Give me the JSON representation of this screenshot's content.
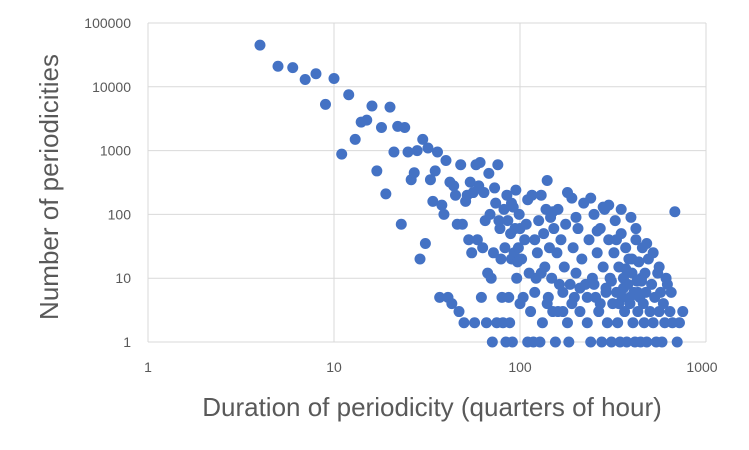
{
  "chart_data": {
    "type": "scatter",
    "xlabel": "Duration of periodicity (quarters of hour)",
    "ylabel": "Number of periodicities",
    "x_scale": "log",
    "y_scale": "log",
    "xlim": [
      1,
      1000
    ],
    "ylim": [
      1,
      100000
    ],
    "x_ticks": [
      "1",
      "10",
      "100",
      "1000"
    ],
    "y_ticks": [
      "1",
      "10",
      "100",
      "1000",
      "10000",
      "100000"
    ],
    "grid": "horizontal",
    "legend": "none",
    "marker_color": "#4472c4",
    "points": [
      [
        4,
        45000
      ],
      [
        5,
        21000
      ],
      [
        6,
        20000
      ],
      [
        7,
        13000
      ],
      [
        8,
        16000
      ],
      [
        9,
        5300
      ],
      [
        10,
        13500
      ],
      [
        11,
        880
      ],
      [
        12,
        7500
      ],
      [
        13,
        1500
      ],
      [
        14,
        2800
      ],
      [
        15,
        3000
      ],
      [
        16,
        5000
      ],
      [
        17,
        480
      ],
      [
        18,
        2300
      ],
      [
        19,
        210
      ],
      [
        20,
        4800
      ],
      [
        21,
        950
      ],
      [
        22,
        2400
      ],
      [
        23,
        70
      ],
      [
        24,
        2300
      ],
      [
        25,
        950
      ],
      [
        26,
        350
      ],
      [
        27,
        450
      ],
      [
        28,
        1000
      ],
      [
        29,
        20
      ],
      [
        30,
        1500
      ],
      [
        31,
        35
      ],
      [
        32,
        1100
      ],
      [
        33,
        350
      ],
      [
        34,
        160
      ],
      [
        35,
        480
      ],
      [
        36,
        950
      ],
      [
        37,
        5
      ],
      [
        38,
        140
      ],
      [
        39,
        100
      ],
      [
        40,
        700
      ],
      [
        41,
        5
      ],
      [
        42,
        320
      ],
      [
        43,
        4
      ],
      [
        44,
        280
      ],
      [
        45,
        200
      ],
      [
        46,
        70
      ],
      [
        47,
        3
      ],
      [
        48,
        600
      ],
      [
        49,
        70
      ],
      [
        50,
        2
      ],
      [
        51,
        160
      ],
      [
        52,
        200
      ],
      [
        53,
        40
      ],
      [
        54,
        320
      ],
      [
        55,
        25
      ],
      [
        56,
        220
      ],
      [
        57,
        2
      ],
      [
        58,
        600
      ],
      [
        59,
        40
      ],
      [
        60,
        280
      ],
      [
        61,
        650
      ],
      [
        62,
        5
      ],
      [
        63,
        30
      ],
      [
        64,
        220
      ],
      [
        65,
        80
      ],
      [
        66,
        2
      ],
      [
        67,
        12
      ],
      [
        68,
        440
      ],
      [
        69,
        100
      ],
      [
        70,
        10
      ],
      [
        71,
        1
      ],
      [
        72,
        25
      ],
      [
        73,
        260
      ],
      [
        74,
        150
      ],
      [
        75,
        2
      ],
      [
        76,
        600
      ],
      [
        77,
        80
      ],
      [
        78,
        60
      ],
      [
        79,
        20
      ],
      [
        80,
        5
      ],
      [
        81,
        2
      ],
      [
        82,
        120
      ],
      [
        83,
        30
      ],
      [
        84,
        1
      ],
      [
        85,
        200
      ],
      [
        86,
        80
      ],
      [
        87,
        5
      ],
      [
        88,
        2
      ],
      [
        89,
        50
      ],
      [
        90,
        20
      ],
      [
        91,
        1
      ],
      [
        92,
        130
      ],
      [
        93,
        25
      ],
      [
        94,
        60
      ],
      [
        95,
        240
      ],
      [
        96,
        10
      ],
      [
        97,
        18
      ],
      [
        98,
        30
      ],
      [
        99,
        100
      ],
      [
        100,
        60
      ],
      [
        102,
        20
      ],
      [
        104,
        5
      ],
      [
        106,
        40
      ],
      [
        108,
        70
      ],
      [
        110,
        1
      ],
      [
        112,
        12
      ],
      [
        114,
        3
      ],
      [
        116,
        200
      ],
      [
        118,
        1
      ],
      [
        120,
        40
      ],
      [
        122,
        10
      ],
      [
        124,
        25
      ],
      [
        126,
        80
      ],
      [
        128,
        1
      ],
      [
        130,
        12
      ],
      [
        132,
        2
      ],
      [
        134,
        50
      ],
      [
        136,
        15
      ],
      [
        138,
        120
      ],
      [
        140,
        340
      ],
      [
        142,
        5
      ],
      [
        144,
        30
      ],
      [
        146,
        90
      ],
      [
        148,
        10
      ],
      [
        150,
        3
      ],
      [
        152,
        60
      ],
      [
        155,
        1
      ],
      [
        158,
        25
      ],
      [
        160,
        120
      ],
      [
        163,
        8
      ],
      [
        166,
        40
      ],
      [
        170,
        3
      ],
      [
        173,
        15
      ],
      [
        176,
        70
      ],
      [
        180,
        2
      ],
      [
        183,
        1
      ],
      [
        186,
        8
      ],
      [
        190,
        180
      ],
      [
        193,
        30
      ],
      [
        196,
        5
      ],
      [
        200,
        12
      ],
      [
        205,
        60
      ],
      [
        210,
        3
      ],
      [
        215,
        20
      ],
      [
        220,
        150
      ],
      [
        225,
        8
      ],
      [
        230,
        2
      ],
      [
        235,
        40
      ],
      [
        240,
        1
      ],
      [
        245,
        10
      ],
      [
        250,
        100
      ],
      [
        255,
        5
      ],
      [
        260,
        25
      ],
      [
        265,
        3
      ],
      [
        270,
        60
      ],
      [
        275,
        1
      ],
      [
        280,
        15
      ],
      [
        285,
        120
      ],
      [
        290,
        7
      ],
      [
        295,
        2
      ],
      [
        300,
        40
      ],
      [
        305,
        10
      ],
      [
        310,
        1
      ],
      [
        315,
        4
      ],
      [
        320,
        25
      ],
      [
        325,
        80
      ],
      [
        330,
        6
      ],
      [
        335,
        2
      ],
      [
        340,
        15
      ],
      [
        345,
        1
      ],
      [
        350,
        50
      ],
      [
        355,
        5
      ],
      [
        360,
        10
      ],
      [
        365,
        3
      ],
      [
        370,
        30
      ],
      [
        375,
        1
      ],
      [
        380,
        8
      ],
      [
        385,
        20
      ],
      [
        390,
        4
      ],
      [
        395,
        90
      ],
      [
        400,
        12
      ],
      [
        405,
        2
      ],
      [
        410,
        6
      ],
      [
        415,
        1
      ],
      [
        420,
        40
      ],
      [
        425,
        9
      ],
      [
        430,
        3
      ],
      [
        435,
        18
      ],
      [
        440,
        5
      ],
      [
        445,
        1
      ],
      [
        450,
        10
      ],
      [
        455,
        30
      ],
      [
        460,
        4
      ],
      [
        465,
        2
      ],
      [
        470,
        12
      ],
      [
        475,
        6
      ],
      [
        480,
        1
      ],
      [
        490,
        20
      ],
      [
        500,
        3
      ],
      [
        510,
        8
      ],
      [
        520,
        2
      ],
      [
        530,
        5
      ],
      [
        540,
        1
      ],
      [
        550,
        12
      ],
      [
        560,
        3
      ],
      [
        570,
        6
      ],
      [
        580,
        1
      ],
      [
        590,
        4
      ],
      [
        600,
        2
      ],
      [
        620,
        8
      ],
      [
        640,
        3
      ],
      [
        660,
        2
      ],
      [
        680,
        110
      ],
      [
        700,
        1
      ],
      [
        720,
        2
      ],
      [
        750,
        3
      ],
      [
        300,
        140
      ],
      [
        240,
        180
      ],
      [
        180,
        220
      ],
      [
        130,
        200
      ],
      [
        110,
        170
      ],
      [
        90,
        150
      ],
      [
        350,
        120
      ],
      [
        420,
        60
      ],
      [
        480,
        35
      ],
      [
        280,
        130
      ],
      [
        200,
        90
      ],
      [
        150,
        110
      ],
      [
        260,
        55
      ],
      [
        330,
        40
      ],
      [
        520,
        25
      ],
      [
        560,
        15
      ],
      [
        610,
        10
      ],
      [
        650,
        6
      ],
      [
        400,
        20
      ],
      [
        370,
        14
      ],
      [
        450,
        9
      ],
      [
        430,
        6
      ],
      [
        390,
        5
      ],
      [
        360,
        7
      ],
      [
        340,
        4
      ],
      [
        310,
        9
      ],
      [
        290,
        6
      ],
      [
        270,
        4
      ],
      [
        250,
        8
      ],
      [
        230,
        5
      ],
      [
        210,
        7
      ],
      [
        190,
        4
      ],
      [
        170,
        6
      ],
      [
        160,
        3
      ],
      [
        140,
        4
      ],
      [
        120,
        6
      ],
      [
        100,
        4
      ]
    ]
  }
}
